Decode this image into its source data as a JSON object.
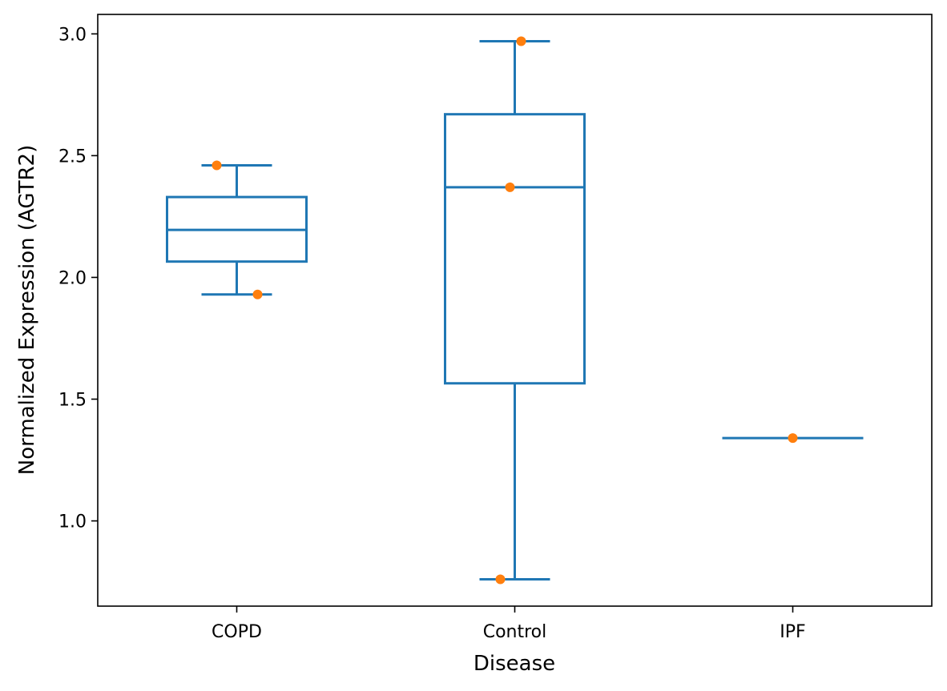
{
  "chart_data": {
    "type": "box",
    "xlabel": "Disease",
    "ylabel": "Normalized Expression (AGTR2)",
    "categories": [
      "COPD",
      "Control",
      "IPF"
    ],
    "ylim": [
      0.65,
      3.08
    ],
    "yticks": [
      1.0,
      1.5,
      2.0,
      2.5,
      3.0
    ],
    "ytick_labels": [
      "1.0",
      "1.5",
      "2.0",
      "2.5",
      "3.0"
    ],
    "grid": false,
    "boxes": [
      {
        "category": "COPD",
        "whisker_low": 1.93,
        "q1": 2.065,
        "median": 2.195,
        "q3": 2.33,
        "whisker_high": 2.46
      },
      {
        "category": "Control",
        "whisker_low": 0.76,
        "q1": 1.565,
        "median": 2.37,
        "q3": 2.67,
        "whisker_high": 2.97
      },
      {
        "category": "IPF",
        "whisker_low": 1.34,
        "q1": 1.34,
        "median": 1.34,
        "q3": 1.34,
        "whisker_high": 1.34
      }
    ],
    "points": [
      {
        "category": "COPD",
        "y": 2.46
      },
      {
        "category": "COPD",
        "y": 1.93
      },
      {
        "category": "Control",
        "y": 2.97
      },
      {
        "category": "Control",
        "y": 2.37
      },
      {
        "category": "Control",
        "y": 0.76
      },
      {
        "category": "IPF",
        "y": 1.34
      }
    ],
    "colors": {
      "box": "#1f77b4",
      "points": "#ff7f0e",
      "axes": "#000000"
    }
  }
}
